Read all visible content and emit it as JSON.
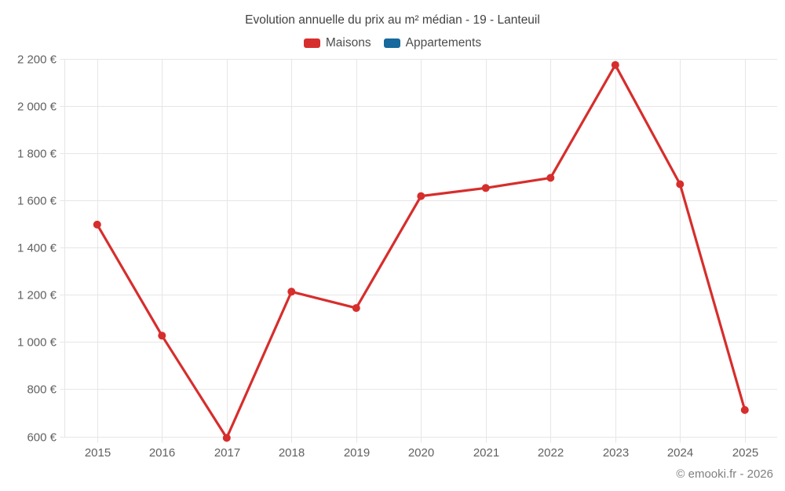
{
  "header": {
    "title": "Evolution annuelle du prix au m² médian - 19 - Lanteuil"
  },
  "legend": {
    "items": [
      {
        "label": "Maisons",
        "color": "#d62e2c"
      },
      {
        "label": "Appartements",
        "color": "#17699e"
      }
    ]
  },
  "footer": {
    "credit": "© emooki.fr - 2026"
  },
  "chart_data": {
    "type": "line",
    "title": "Evolution annuelle du prix au m² médian - 19 - Lanteuil",
    "categories": [
      "2015",
      "2016",
      "2017",
      "2018",
      "2019",
      "2020",
      "2021",
      "2022",
      "2023",
      "2024",
      "2025"
    ],
    "series": [
      {
        "name": "Maisons",
        "color": "#d62e2c",
        "values": [
          1500,
          1030,
          597,
          1216,
          1147,
          1621,
          1655,
          1698,
          2176,
          1671,
          715
        ]
      },
      {
        "name": "Appartements",
        "color": "#17699e",
        "values": []
      }
    ],
    "xlabel": "",
    "ylabel": "",
    "ylim": [
      600,
      2200
    ],
    "ytick_step": 200,
    "ytick_labels": [
      "600 €",
      "800 €",
      "1 000 €",
      "1 200 €",
      "1 400 €",
      "1 600 €",
      "1 800 €",
      "2 000 €",
      "2 200 €"
    ],
    "grid": true,
    "legend_position": "top",
    "currency": "€"
  }
}
